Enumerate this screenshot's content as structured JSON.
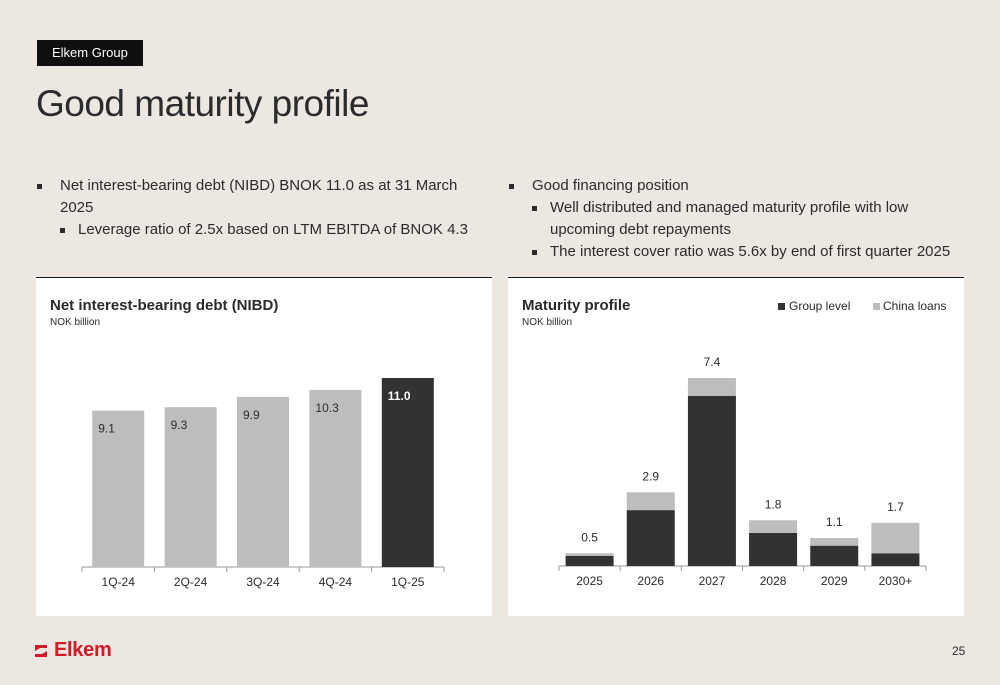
{
  "header": {
    "tag": "Elkem Group",
    "title": "Good maturity profile"
  },
  "bullets_left": [
    {
      "level": 1,
      "text": "Net interest-bearing debt (NIBD) BNOK 11.0 as at 31 March 2025"
    },
    {
      "level": 2,
      "text": "Leverage ratio of 2.5x based on LTM EBITDA of BNOK 4.3"
    }
  ],
  "bullets_right": [
    {
      "level": 1,
      "text": "Good financing position"
    },
    {
      "level": 2,
      "text": "Well distributed and managed maturity profile with low upcoming debt repayments"
    },
    {
      "level": 2,
      "text": "The interest cover ratio was 5.6x by end of first quarter 2025"
    }
  ],
  "colors": {
    "light_bar": "#bdbdbd",
    "dark_bar": "#303234",
    "brand_red": "#d01c28"
  },
  "chart_data": [
    {
      "type": "bar",
      "title": "Net interest-bearing debt (NIBD)",
      "subtitle": "NOK billion",
      "categories": [
        "1Q-24",
        "2Q-24",
        "3Q-24",
        "4Q-24",
        "1Q-25"
      ],
      "values": [
        9.1,
        9.3,
        9.9,
        10.3,
        11.0
      ],
      "labels": [
        "9.1",
        "9.3",
        "9.9",
        "10.3",
        "11.0"
      ],
      "highlight_index": 4,
      "ylim": [
        0,
        11.0
      ],
      "grid": false
    },
    {
      "type": "bar",
      "stacked": true,
      "title": "Maturity profile",
      "subtitle": "NOK billion",
      "categories": [
        "2025",
        "2026",
        "2027",
        "2028",
        "2029",
        "2030+"
      ],
      "series": [
        {
          "name": "Group level",
          "values": [
            0.4,
            2.2,
            6.7,
            1.3,
            0.8,
            0.5
          ]
        },
        {
          "name": "China loans",
          "values": [
            0.1,
            0.7,
            0.7,
            0.5,
            0.3,
            1.2
          ]
        }
      ],
      "totals": [
        "0.5",
        "2.9",
        "7.4",
        "1.8",
        "1.1",
        "1.7"
      ],
      "ylim": [
        0,
        7.4
      ],
      "legend": "top-right",
      "grid": false
    }
  ],
  "footer": {
    "logo": "Elkem",
    "page_number": "25"
  }
}
